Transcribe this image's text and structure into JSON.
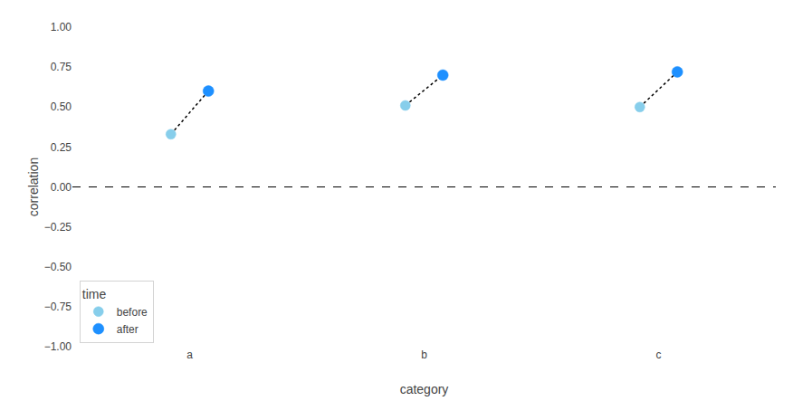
{
  "chart_data": {
    "type": "dumbbell",
    "xlabel": "category",
    "ylabel": "correlation",
    "categories": [
      "a",
      "b",
      "c"
    ],
    "series": [
      {
        "name": "before",
        "color": "#87CEEB",
        "values": [
          0.33,
          0.51,
          0.5
        ]
      },
      {
        "name": "after",
        "color": "#1E90FF",
        "values": [
          0.6,
          0.7,
          0.72
        ]
      }
    ],
    "reference_line": 0.0,
    "ylim": [
      -1.0,
      1.0
    ],
    "yticks": [
      {
        "value": -1.0,
        "label": "−1.00"
      },
      {
        "value": -0.75,
        "label": "−0.75"
      },
      {
        "value": -0.5,
        "label": "−0.50"
      },
      {
        "value": -0.25,
        "label": "−0.25"
      },
      {
        "value": 0.0,
        "label": "0.00"
      },
      0.25,
      {
        "value": 0.5,
        "label": "0.50"
      },
      0.75,
      {
        "value": 1.0,
        "label": "1.00"
      }
    ],
    "legend_title": "time",
    "legend": "lower left",
    "grid": false
  }
}
